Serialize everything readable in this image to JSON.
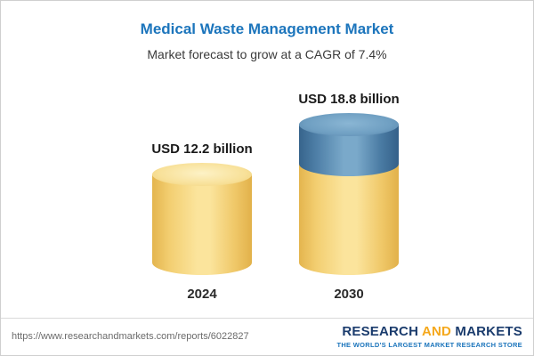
{
  "chart_data": {
    "type": "bar",
    "title": "Medical Waste Management Market",
    "subtitle": "Market forecast to grow at a CAGR of 7.4%",
    "categories": [
      "2024",
      "2030"
    ],
    "values": [
      12.2,
      18.8
    ],
    "value_labels": [
      "USD 12.2 billion",
      "USD 18.8 billion"
    ],
    "unit": "USD billion",
    "cagr": "7.4%",
    "xlabel": "",
    "ylabel": "",
    "legend": "none",
    "grid": false,
    "bar_style": "3d-cylinder",
    "colors": {
      "bar_2024": "#f7dd8f",
      "bar_2030_base": "#f7dd8f",
      "bar_2030_growth": "#6f9fc2",
      "title": "#1c75bc"
    }
  },
  "footer": {
    "url": "https://www.researchandmarkets.com/reports/6022827",
    "logo": {
      "research": "RESEARCH",
      "and": "AND",
      "markets": "MARKETS",
      "tagline": "THE WORLD'S LARGEST MARKET RESEARCH STORE"
    }
  }
}
